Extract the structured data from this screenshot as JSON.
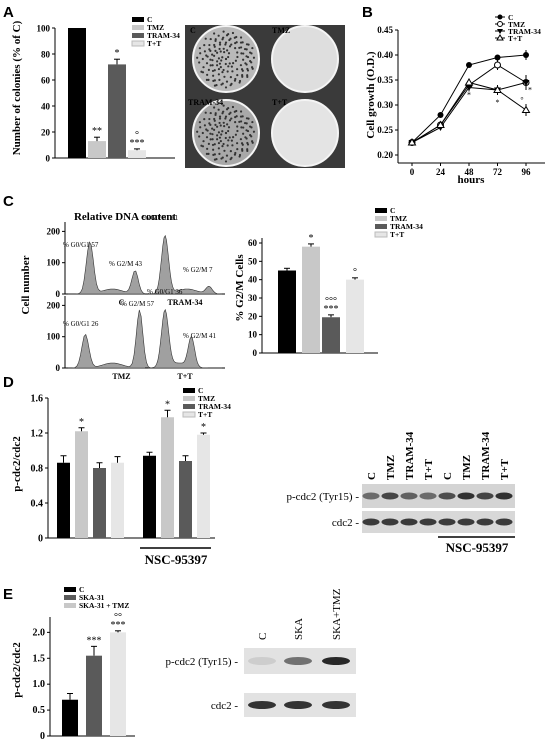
{
  "panels": {
    "A": {
      "letter": "A",
      "ylabel": "Number of colonies (% of C)",
      "yticks": [
        "0",
        "20",
        "40",
        "60",
        "80",
        "100"
      ],
      "legend": [
        "C",
        "TMZ",
        "TRAM-34",
        "T+T"
      ],
      "dish_labels": [
        "C",
        "TMZ",
        "TRAM-34",
        "T+T"
      ]
    },
    "B": {
      "letter": "B",
      "ylabel": "Cell growth (O.D.)",
      "xlabel": "hours",
      "yticks": [
        "0.20",
        "0.25",
        "0.30",
        "0.35",
        "0.40",
        "0.45"
      ],
      "xticks": [
        "0",
        "24",
        "48",
        "72",
        "96"
      ],
      "legend": [
        "C",
        "TMZ",
        "TRAM-34",
        "T+T"
      ]
    },
    "C": {
      "letter": "C",
      "hist_title": "Relative DNA content",
      "ylabel": "Cell number",
      "hist_yticks": [
        "0",
        "100",
        "200"
      ],
      "histograms": [
        {
          "name": "C",
          "g0": "% G0/G1 57",
          "g2": "% G2/M  43"
        },
        {
          "name": "TRAM-34",
          "g0": "% G0/G1 61",
          "g2": "% G2/M  7"
        },
        {
          "name": "TMZ",
          "g0": "% G0/G1 26",
          "g2": "% G2/M  57"
        },
        {
          "name": "T+T",
          "g0": "% G0/G1 36",
          "g2": "% G2/M  41"
        }
      ],
      "bar_ylabel": "% G2/M Cells",
      "bar_yticks": [
        "0",
        "10",
        "20",
        "30",
        "40",
        "50",
        "60"
      ],
      "legend": [
        "C",
        "TMZ",
        "TRAM-34",
        "T+T"
      ]
    },
    "D": {
      "letter": "D",
      "ylabel": "p-cdc2/cdc2",
      "yticks": [
        "0",
        "0.4",
        "0.8",
        "1.2",
        "1.6"
      ],
      "legend": [
        "C",
        "TMZ",
        "TRAM-34",
        "T+T"
      ],
      "group_label": "NSC-95397",
      "blot_lanes": [
        "C",
        "TMZ",
        "TRAM-34",
        "T+T",
        "C",
        "TMZ",
        "TRAM-34",
        "T+T"
      ],
      "blot_rows": [
        "p-cdc2 (Tyr15) -",
        "cdc2 -"
      ],
      "blot_group": "NSC-95397"
    },
    "E": {
      "letter": "E",
      "ylabel": "p-cdc2/cdc2",
      "yticks": [
        "0",
        "0.5",
        "1.0",
        "1.5",
        "2.0"
      ],
      "legend": [
        "C",
        "SKA-31",
        "SKA-31 + TMZ"
      ],
      "blot_lanes": [
        "C",
        "SKA",
        "SKA+TMZ"
      ],
      "blot_rows": [
        "p-cdc2 (Tyr15) -",
        "cdc2 -"
      ]
    }
  },
  "colors": {
    "c": "#000000",
    "tmz": "#c8c8c8",
    "tram": "#5a5a5a",
    "tt": "#e6e6e6"
  },
  "chart_data": [
    {
      "type": "bar",
      "categories": [
        "C",
        "TMZ",
        "TRAM-34",
        "T+T"
      ],
      "values": [
        100,
        13,
        72,
        6
      ],
      "errors": [
        0,
        3,
        4,
        1
      ],
      "ylabel": "Number of colonies (% of C)",
      "ylim": [
        0,
        100
      ],
      "sig": [
        "",
        "**",
        "*",
        "°\n***"
      ]
    },
    {
      "type": "line",
      "x": [
        0,
        24,
        48,
        72,
        96
      ],
      "xlabel": "hours",
      "ylabel": "Cell growth (O.D.)",
      "ylim": [
        0.2,
        0.45
      ],
      "series": [
        {
          "name": "C",
          "values": [
            0.225,
            0.28,
            0.38,
            0.395,
            0.4
          ],
          "errors": [
            0,
            0.004,
            0.005,
            0.005,
            0.01
          ],
          "marker": "circle-filled"
        },
        {
          "name": "TMZ",
          "values": [
            0.225,
            0.26,
            0.34,
            0.38,
            0.345
          ],
          "errors": [
            0,
            0.005,
            0.01,
            0.01,
            0.015
          ],
          "marker": "circle-open"
        },
        {
          "name": "TRAM-34",
          "values": [
            0.225,
            0.255,
            0.335,
            0.33,
            0.345
          ],
          "errors": [
            0,
            0.005,
            0.008,
            0.01,
            0.012
          ],
          "marker": "triangle-down-filled"
        },
        {
          "name": "T+T",
          "values": [
            0.225,
            0.26,
            0.345,
            0.33,
            0.29
          ],
          "errors": [
            0,
            0.005,
            0.008,
            0.01,
            0.012
          ],
          "marker": "triangle-up-open"
        }
      ]
    },
    {
      "type": "bar",
      "categories": [
        "C",
        "TMZ",
        "TRAM-34",
        "T+T"
      ],
      "values": [
        45,
        58,
        19.5,
        40
      ],
      "errors": [
        1.2,
        1.5,
        1.3,
        1.0
      ],
      "ylabel": "% G2/M Cells",
      "ylim": [
        0,
        60
      ],
      "sig": [
        "",
        "*",
        "°°°\n***",
        "°"
      ]
    },
    {
      "type": "bar",
      "categories": [
        "C",
        "TMZ",
        "TRAM-34",
        "T+T",
        "C",
        "TMZ",
        "TRAM-34",
        "T+T"
      ],
      "values": [
        0.86,
        1.22,
        0.8,
        0.86,
        0.94,
        1.38,
        0.88,
        1.18
      ],
      "errors": [
        0.08,
        0.04,
        0.06,
        0.07,
        0.04,
        0.08,
        0.06,
        0.02
      ],
      "ylabel": "p-cdc2/cdc2",
      "ylim": [
        0,
        1.6
      ],
      "sig": [
        "",
        "*",
        "",
        "",
        "",
        "*",
        "",
        "*"
      ]
    },
    {
      "type": "bar",
      "categories": [
        "C",
        "SKA-31",
        "SKA-31 + TMZ"
      ],
      "values": [
        0.7,
        1.55,
        2.0
      ],
      "errors": [
        0.12,
        0.18,
        0.03
      ],
      "ylabel": "p-cdc2/cdc2",
      "ylim": [
        0,
        2.2
      ],
      "sig": [
        "",
        "***",
        "°°\n***"
      ]
    }
  ]
}
